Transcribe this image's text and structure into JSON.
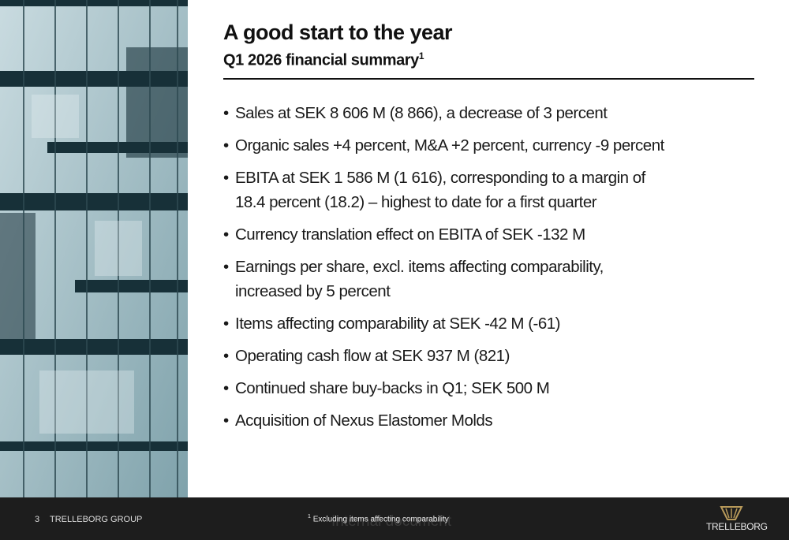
{
  "header": {
    "title": "A good start to the year",
    "subtitle": "Q1 2026 financial summary",
    "subtitle_note": "1"
  },
  "bullets": [
    {
      "lines": [
        "Sales at SEK 8 606 M (8 866), a decrease of 3 percent"
      ]
    },
    {
      "lines": [
        "Organic sales +4 percent, M&A +2 percent, currency -9 percent"
      ]
    },
    {
      "lines": [
        "EBITA at SEK 1 586 M (1 616), corresponding to a margin of",
        "18.4 percent (18.2) – highest to date for a first quarter"
      ]
    },
    {
      "lines": [
        "Currency translation effect on EBITA of SEK -132 M"
      ]
    },
    {
      "lines": [
        "Earnings per share, excl. items affecting comparability,",
        "increased by 5 percent"
      ]
    },
    {
      "lines": [
        "Items affecting comparability at SEK -42 M (-61)"
      ]
    },
    {
      "lines": [
        "Operating cash flow at SEK 937 M (821)"
      ]
    },
    {
      "lines": [
        "Continued share buy-backs in Q1; SEK 500 M"
      ]
    },
    {
      "lines": [
        "Acquisition of Nexus Elastomer Molds"
      ]
    }
  ],
  "footer": {
    "page": "3",
    "company": "TRELLEBORG GROUP",
    "footnote_marker": "1",
    "footnote": "Excluding items affecting comparability",
    "watermark": "Internal document",
    "logo": "TRELLEBORG"
  }
}
